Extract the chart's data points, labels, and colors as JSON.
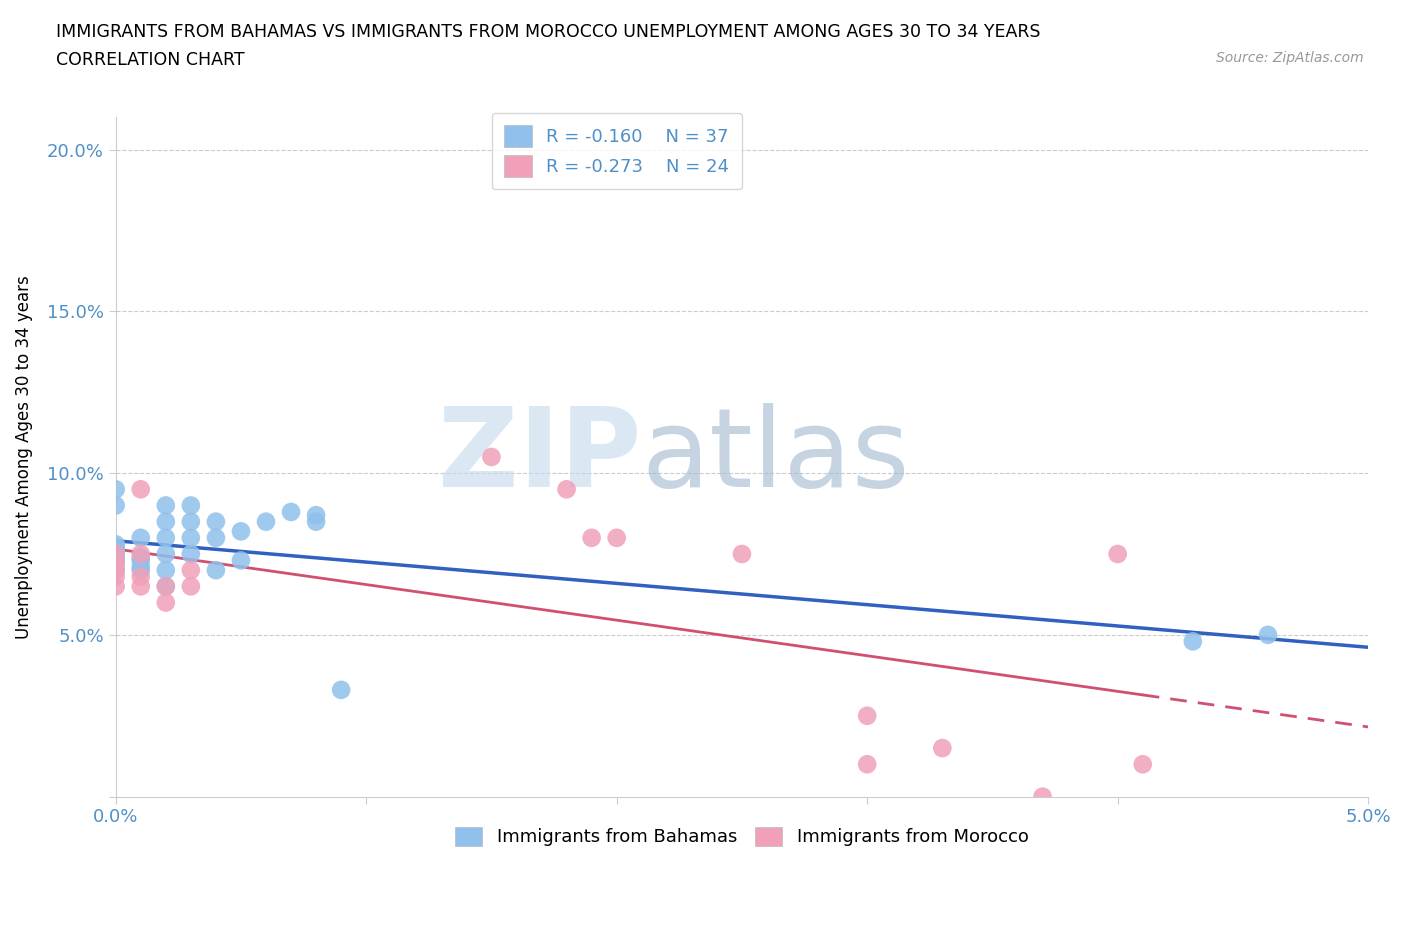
{
  "title_line1": "IMMIGRANTS FROM BAHAMAS VS IMMIGRANTS FROM MOROCCO UNEMPLOYMENT AMONG AGES 30 TO 34 YEARS",
  "title_line2": "CORRELATION CHART",
  "source": "Source: ZipAtlas.com",
  "ylabel": "Unemployment Among Ages 30 to 34 years",
  "xlim": [
    0.0,
    0.05
  ],
  "ylim": [
    0.0,
    0.21
  ],
  "bahamas_color": "#90C0EC",
  "morocco_color": "#F0A0B8",
  "bahamas_line_color": "#3060C0",
  "morocco_line_color": "#D05070",
  "tick_color": "#5090C8",
  "bahamas_R": -0.16,
  "bahamas_N": 37,
  "morocco_R": -0.273,
  "morocco_N": 24,
  "watermark_zip": "ZIP",
  "watermark_atlas": "atlas",
  "bahamas_x": [
    0.0,
    0.0,
    0.0,
    0.0,
    0.0,
    0.0,
    0.0,
    0.0,
    0.0,
    0.0,
    0.001,
    0.001,
    0.001,
    0.001,
    0.001,
    0.002,
    0.002,
    0.002,
    0.002,
    0.002,
    0.002,
    0.003,
    0.003,
    0.003,
    0.003,
    0.004,
    0.004,
    0.004,
    0.005,
    0.005,
    0.006,
    0.007,
    0.008,
    0.008,
    0.009,
    0.043,
    0.046
  ],
  "bahamas_y": [
    0.07,
    0.072,
    0.073,
    0.074,
    0.075,
    0.076,
    0.077,
    0.078,
    0.09,
    0.095,
    0.07,
    0.071,
    0.073,
    0.074,
    0.08,
    0.065,
    0.07,
    0.075,
    0.08,
    0.085,
    0.09,
    0.075,
    0.08,
    0.085,
    0.09,
    0.07,
    0.08,
    0.085,
    0.073,
    0.082,
    0.085,
    0.088,
    0.085,
    0.087,
    0.033,
    0.048,
    0.05
  ],
  "morocco_x": [
    0.0,
    0.0,
    0.0,
    0.0,
    0.0,
    0.001,
    0.001,
    0.001,
    0.001,
    0.002,
    0.002,
    0.003,
    0.003,
    0.015,
    0.018,
    0.019,
    0.02,
    0.025,
    0.03,
    0.03,
    0.033,
    0.037,
    0.04,
    0.041
  ],
  "morocco_y": [
    0.065,
    0.068,
    0.07,
    0.072,
    0.075,
    0.065,
    0.068,
    0.075,
    0.095,
    0.06,
    0.065,
    0.065,
    0.07,
    0.105,
    0.095,
    0.08,
    0.08,
    0.075,
    0.01,
    0.025,
    0.015,
    0.0,
    0.075,
    0.01
  ]
}
